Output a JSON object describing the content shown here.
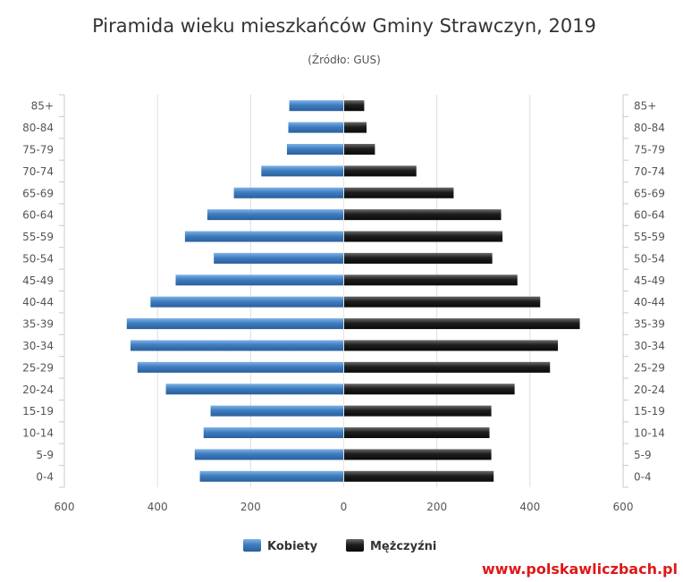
{
  "chart_data": {
    "type": "bar",
    "orientation": "horizontal-pyramid",
    "title": "Piramida wieku mieszkańców Gminy Strawczyn, 2019",
    "subtitle": "(Źródło: GUS)",
    "categories": [
      "85+",
      "80-84",
      "75-79",
      "70-74",
      "65-69",
      "60-64",
      "55-59",
      "50-54",
      "45-49",
      "40-44",
      "35-39",
      "30-34",
      "25-29",
      "20-24",
      "15-19",
      "10-14",
      "5-9",
      "0-4"
    ],
    "series": [
      {
        "name": "Kobiety",
        "color": "#3e7dc0",
        "values": [
          117,
          119,
          122,
          177,
          236,
          293,
          341,
          279,
          361,
          415,
          466,
          458,
          443,
          382,
          286,
          301,
          320,
          309
        ]
      },
      {
        "name": "Mężczyźni",
        "color": "#1e1e1e",
        "values": [
          44,
          49,
          67,
          156,
          236,
          338,
          341,
          319,
          373,
          422,
          507,
          460,
          443,
          367,
          317,
          313,
          317,
          322
        ]
      }
    ],
    "xlim": [
      -600,
      600
    ],
    "x_ticks": [
      "600",
      "400",
      "200",
      "0",
      "200",
      "400",
      "600"
    ],
    "grid": true,
    "legend_position": "bottom"
  },
  "footer": {
    "source_url": "www.polskawliczbach.pl"
  }
}
